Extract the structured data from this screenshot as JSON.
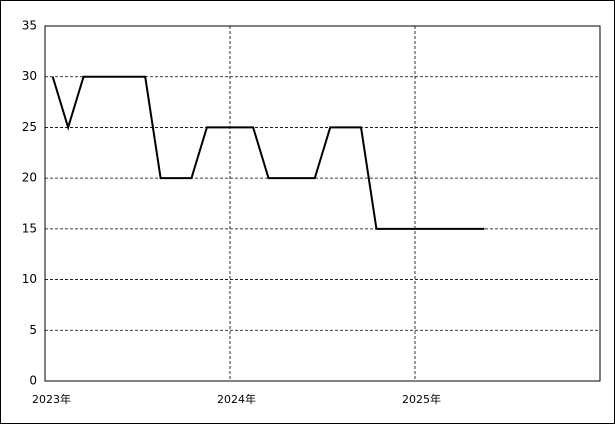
{
  "chart_data": {
    "type": "line",
    "x": [
      0.5,
      1.5,
      2.5,
      3.5,
      4.5,
      5.5,
      6.5,
      7.5,
      8.5,
      9.5,
      10.5,
      11.5,
      12.5,
      13.5,
      14.5,
      15.5,
      16.5,
      17.5,
      18.5,
      19.5,
      20.5,
      21.5,
      22.5,
      23.5,
      24.5,
      25.5,
      26.5,
      27.5,
      28.5
    ],
    "series": [
      {
        "color": "#000000",
        "values": [
          30,
          25,
          30,
          30,
          30,
          30,
          30,
          20,
          20,
          20,
          25,
          25,
          25,
          25,
          20,
          20,
          20,
          20,
          25,
          25,
          25,
          15,
          15,
          15,
          15,
          15,
          15,
          15,
          15
        ]
      }
    ],
    "xlim": [
      0,
      36
    ],
    "xticks": [
      {
        "value": 0,
        "label": "2023年"
      },
      {
        "value": 12,
        "label": "2024年"
      },
      {
        "value": 24,
        "label": "2025年"
      }
    ],
    "ylim": [
      0,
      35
    ],
    "yticks": [
      0,
      5,
      10,
      15,
      20,
      25,
      30,
      35
    ],
    "grid": true
  }
}
